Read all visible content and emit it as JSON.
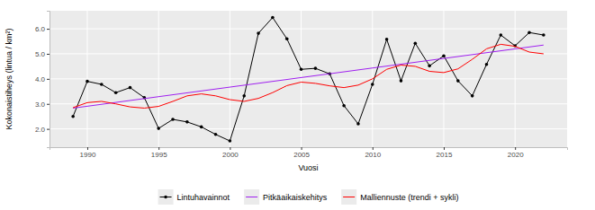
{
  "chart_data": {
    "type": "line",
    "x_label": "Vuosi",
    "y_label": "Kokonaistiheys (lintua / km²)",
    "xlim": [
      1987.35,
      2023.65
    ],
    "xticks": [
      1990,
      1995,
      2000,
      2005,
      2010,
      2015,
      2020
    ],
    "ylim": [
      1.27,
      6.72
    ],
    "yticks": [
      {
        "value": 2,
        "label": "2.0"
      },
      {
        "value": 3,
        "label": "3.0"
      },
      {
        "value": 4,
        "label": "4.0"
      },
      {
        "value": 5,
        "label": "5.0"
      },
      {
        "value": 6,
        "label": "6.0"
      }
    ],
    "grid": true,
    "legend": "bottom",
    "series": [
      {
        "name": "Lintuhavainnot",
        "color": "#000000",
        "marker": "circle",
        "x": [
          1989,
          1990,
          1991,
          1992,
          1993,
          1994,
          1995,
          1996,
          1997,
          1998,
          1999,
          2000,
          2001,
          2002,
          2003,
          2004,
          2005,
          2006,
          2007,
          2008,
          2009,
          2010,
          2011,
          2012,
          2013,
          2014,
          2015,
          2016,
          2017,
          2018,
          2019,
          2020,
          2021,
          2022
        ],
        "values": [
          2.5,
          3.9,
          3.78,
          3.45,
          3.65,
          3.25,
          2.02,
          2.38,
          2.28,
          2.08,
          1.78,
          1.52,
          3.32,
          5.82,
          6.45,
          5.6,
          4.38,
          4.42,
          4.2,
          2.93,
          2.2,
          3.78,
          5.58,
          3.92,
          5.42,
          4.52,
          4.92,
          3.92,
          3.32,
          4.58,
          5.75,
          5.32,
          5.85,
          5.75
        ]
      },
      {
        "name": "Pitkäaikaiskehitys",
        "color": "#a020f0",
        "marker": "none",
        "x": [
          1989,
          2022
        ],
        "values": [
          2.83,
          5.35
        ]
      },
      {
        "name": "Malliennuste (trendi + sykli)",
        "color": "#ff0000",
        "marker": "none",
        "x": [
          1989,
          1990,
          1991,
          1992,
          1993,
          1994,
          1995,
          1996,
          1997,
          1998,
          1999,
          2000,
          2001,
          2002,
          2003,
          2004,
          2005,
          2006,
          2007,
          2008,
          2009,
          2010,
          2011,
          2012,
          2013,
          2014,
          2015,
          2016,
          2017,
          2018,
          2019,
          2020,
          2021,
          2022
        ],
        "values": [
          2.85,
          3.05,
          3.1,
          3.0,
          2.88,
          2.83,
          2.9,
          3.1,
          3.32,
          3.4,
          3.32,
          3.17,
          3.1,
          3.22,
          3.45,
          3.73,
          3.87,
          3.82,
          3.72,
          3.65,
          3.75,
          4.0,
          4.38,
          4.55,
          4.5,
          4.3,
          4.25,
          4.4,
          4.78,
          5.2,
          5.38,
          5.3,
          5.07,
          5.0
        ]
      }
    ]
  }
}
